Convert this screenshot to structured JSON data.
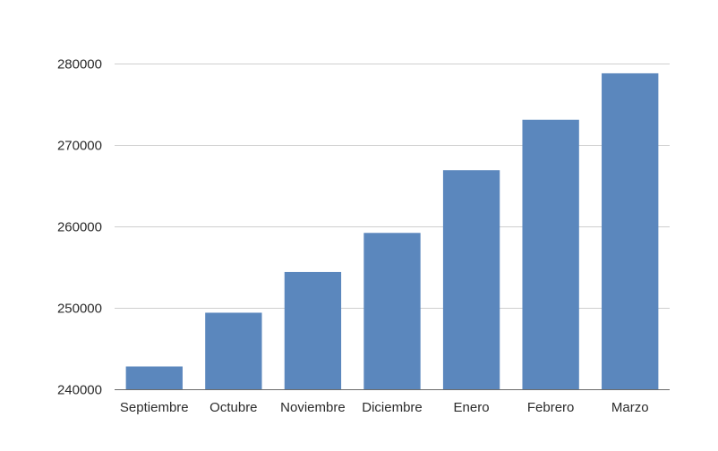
{
  "chart_data": {
    "type": "bar",
    "title": "",
    "xlabel": "",
    "ylabel": "",
    "categories": [
      "Septiembre",
      "Octubre",
      "Noviembre",
      "Diciembre",
      "Enero",
      "Febrero",
      "Marzo"
    ],
    "values": [
      242800,
      249400,
      254400,
      259200,
      266900,
      273100,
      278800
    ],
    "ylim": [
      240000,
      280000
    ],
    "yticks": [
      240000,
      250000,
      260000,
      270000,
      280000
    ],
    "ytick_labels": [
      "240000",
      "250000",
      "260000",
      "270000",
      "280000"
    ],
    "grid": true,
    "legend": "none",
    "colors": {
      "bar": "#5b87bd",
      "grid": "#cfcfcf",
      "axis": "#6a6a6a",
      "text": "#2b2b2b"
    }
  }
}
